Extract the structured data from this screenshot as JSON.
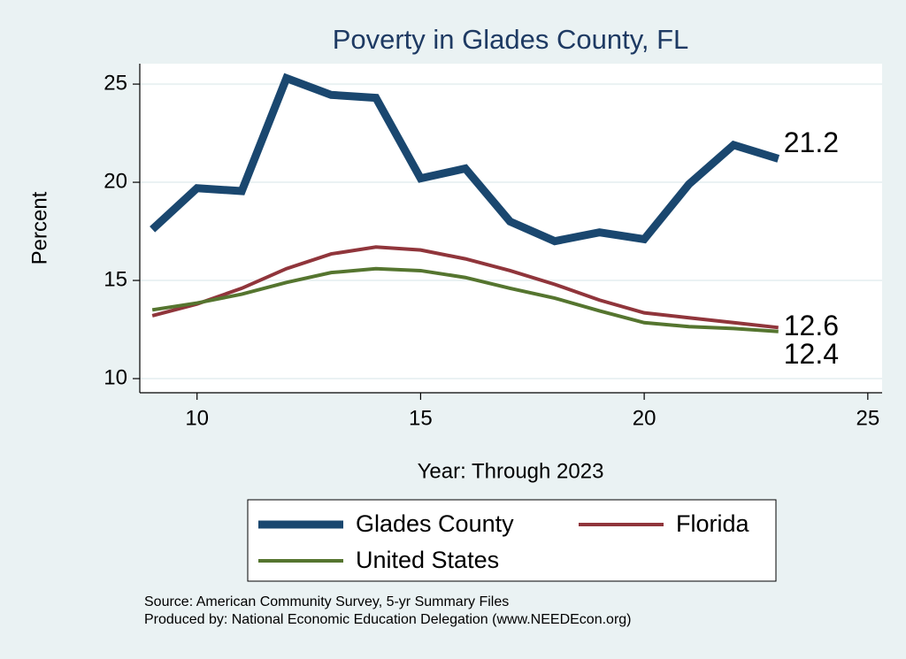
{
  "chart_data": {
    "type": "line",
    "title": "Poverty in Glades County, FL",
    "x_label": "Year: Through 2023",
    "y_label": "Percent",
    "notes": [
      "Source: American Community Survey, 5-yr Summary Files",
      "Produced by: National Economic Education Delegation (www.NEEDEcon.org)"
    ],
    "x": [
      9,
      10,
      11,
      12,
      13,
      14,
      15,
      16,
      17,
      18,
      19,
      20,
      21,
      22,
      23
    ],
    "series": [
      {
        "name": "Glades County",
        "color": "#1a476f",
        "width": 9,
        "values": [
          17.6,
          19.7,
          19.55,
          25.3,
          24.45,
          24.3,
          20.2,
          20.7,
          18.0,
          17.0,
          17.45,
          17.1,
          19.9,
          21.9,
          21.2
        ]
      },
      {
        "name": "Florida",
        "color": "#90353b",
        "width": 4,
        "values": [
          13.2,
          13.8,
          14.6,
          15.6,
          16.35,
          16.7,
          16.55,
          16.1,
          15.5,
          14.8,
          14.0,
          13.35,
          13.1,
          12.85,
          12.6
        ]
      },
      {
        "name": "United States",
        "color": "#55752f",
        "width": 4,
        "values": [
          13.5,
          13.85,
          14.3,
          14.9,
          15.4,
          15.6,
          15.5,
          15.15,
          14.6,
          14.1,
          13.45,
          12.85,
          12.65,
          12.55,
          12.4
        ]
      }
    ],
    "label_last": true,
    "xlim": [
      8.72,
      25.32
    ],
    "xticks": [
      10,
      15,
      20,
      25
    ],
    "ylim": [
      9.28,
      26.04
    ],
    "yticks": [
      10,
      15,
      20,
      25
    ],
    "grid": true
  }
}
